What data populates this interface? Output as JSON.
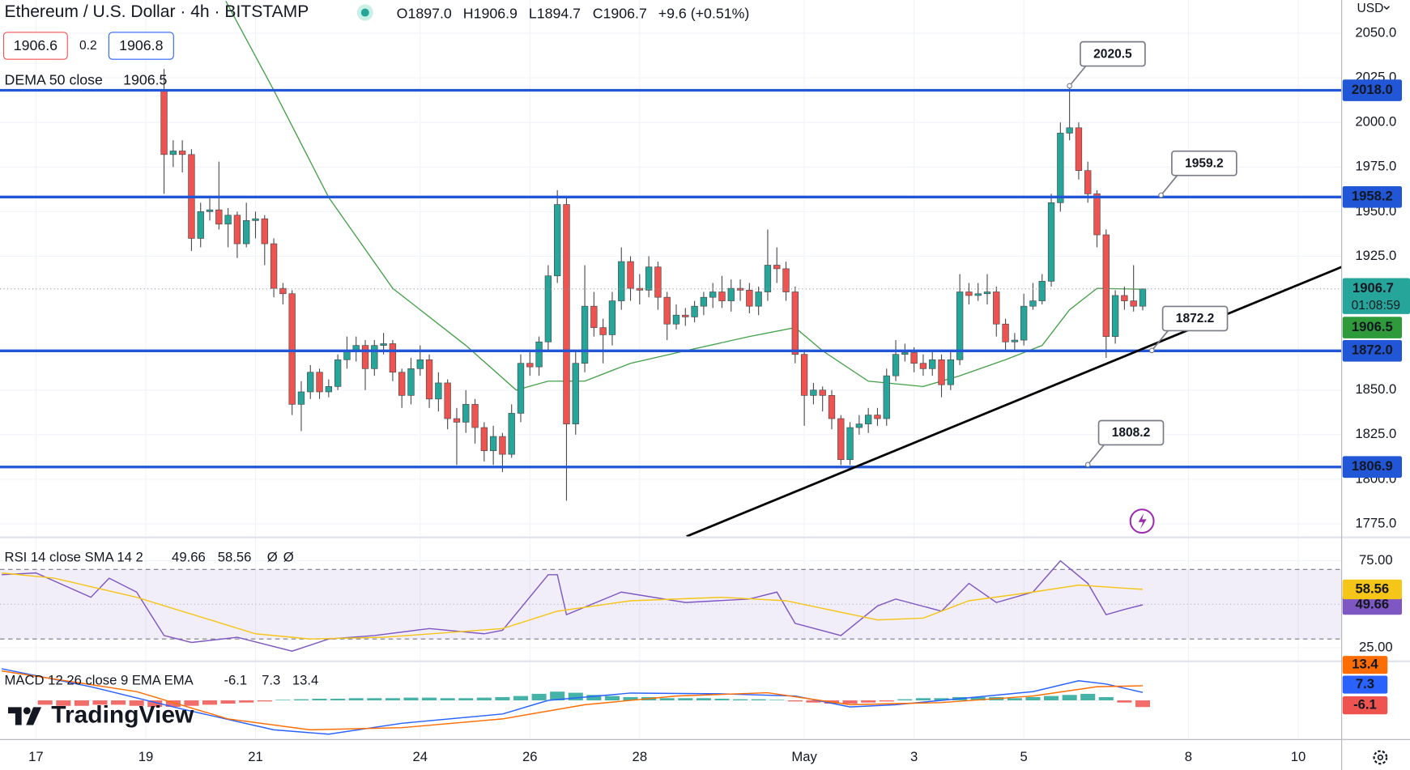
{
  "chart_data": [
    {
      "type": "candlestick",
      "title": "Ethereum / U.S. Dollar · 4h · BITSTAMP",
      "legend_values": [
        "O1897.0",
        "H1906.9",
        "L1894.7",
        "C1906.7",
        "+9.6 (+0.51%)"
      ],
      "quote": {
        "bid": 1906.6,
        "spread": 0.2,
        "ask": 1906.8
      },
      "currency": "USD",
      "countdown": "01:08:59",
      "up_color": "#26a69a",
      "down_color": "#ef5350",
      "x": [
        56,
        60,
        64,
        68,
        72,
        76,
        80,
        84,
        88,
        92,
        96,
        100,
        104,
        108,
        112,
        116,
        120,
        124,
        128,
        132,
        136,
        140,
        144,
        148,
        152,
        156,
        160,
        164,
        168,
        172,
        176,
        180,
        184,
        188,
        192,
        196,
        200,
        204,
        208,
        212,
        216,
        220,
        224,
        228,
        232,
        236,
        240,
        244,
        248,
        252,
        256,
        260,
        264,
        268,
        272,
        276,
        280,
        284,
        288,
        292,
        296,
        300,
        304,
        308,
        312,
        316,
        320,
        324,
        328,
        332,
        336,
        340,
        344,
        348,
        352,
        356,
        360,
        364,
        368,
        372,
        376,
        380,
        384,
        388,
        392,
        396,
        400,
        404,
        408,
        412,
        416,
        420,
        424,
        428,
        432,
        436,
        440,
        444,
        448,
        452,
        456,
        460,
        464,
        468,
        472,
        476,
        480,
        484
      ],
      "open": [
        2018,
        1982,
        1984,
        1982,
        1935,
        1950,
        1951,
        1943,
        1948,
        1932,
        1945,
        1946,
        1932,
        1907,
        1904,
        1842,
        1849,
        1860,
        1849,
        1852,
        1867,
        1872,
        1875,
        1862,
        1875,
        1876,
        1860,
        1847,
        1862,
        1867,
        1845,
        1854,
        1834,
        1832,
        1842,
        1829,
        1816,
        1824,
        1814,
        1837,
        1865,
        1863,
        1877,
        1914,
        1954,
        1831,
        1865,
        1897,
        1885,
        1881,
        1900,
        1922,
        1907,
        1906,
        1919,
        1902,
        1887,
        1892,
        1891,
        1897,
        1902,
        1905,
        1900,
        1907,
        1906,
        1897,
        1905,
        1920,
        1918,
        1905,
        1870,
        1847,
        1850,
        1847,
        1834,
        1811,
        1829,
        1831,
        1836,
        1834,
        1858,
        1870,
        1871,
        1865,
        1862,
        1867,
        1853,
        1867,
        1905,
        1903,
        1904,
        1905,
        1887,
        1877,
        1878,
        1897,
        1900,
        1911,
        1955,
        1994,
        1997,
        1973,
        1960,
        1937,
        1880,
        1903,
        1900,
        1897
      ],
      "high": [
        2030,
        1990,
        1990,
        1985,
        1955,
        1958,
        1978,
        1952,
        1950,
        1955,
        1950,
        1948,
        1935,
        1910,
        1906,
        1855,
        1864,
        1862,
        1856,
        1870,
        1880,
        1880,
        1878,
        1878,
        1882,
        1878,
        1862,
        1868,
        1875,
        1870,
        1860,
        1856,
        1840,
        1850,
        1845,
        1832,
        1830,
        1826,
        1842,
        1870,
        1872,
        1880,
        1920,
        1962,
        1958,
        1872,
        1920,
        1905,
        1890,
        1905,
        1930,
        1925,
        1915,
        1925,
        1922,
        1905,
        1898,
        1896,
        1900,
        1905,
        1910,
        1914,
        1912,
        1912,
        1910,
        1908,
        1940,
        1930,
        1922,
        1908,
        1872,
        1854,
        1852,
        1850,
        1836,
        1832,
        1836,
        1840,
        1840,
        1862,
        1878,
        1876,
        1874,
        1870,
        1872,
        1870,
        1872,
        1915,
        1910,
        1910,
        1915,
        1908,
        1890,
        1882,
        1904,
        1910,
        1915,
        1960,
        2000,
        2020.5,
        2000,
        1978,
        1962,
        1940,
        1906,
        1908,
        1920,
        1906.9
      ],
      "low": [
        1960,
        1975,
        1972,
        1928,
        1930,
        1945,
        1940,
        1930,
        1924,
        1930,
        1935,
        1920,
        1902,
        1898,
        1836,
        1827,
        1845,
        1845,
        1846,
        1850,
        1862,
        1866,
        1850,
        1858,
        1870,
        1855,
        1840,
        1842,
        1858,
        1840,
        1838,
        1828,
        1808,
        1826,
        1820,
        1810,
        1808,
        1804,
        1812,
        1832,
        1858,
        1858,
        1872,
        1910,
        1788,
        1825,
        1860,
        1880,
        1865,
        1875,
        1895,
        1900,
        1898,
        1902,
        1895,
        1878,
        1884,
        1886,
        1888,
        1892,
        1896,
        1896,
        1894,
        1900,
        1893,
        1892,
        1900,
        1910,
        1900,
        1865,
        1830,
        1842,
        1838,
        1828,
        1808,
        1808,
        1825,
        1826,
        1830,
        1830,
        1855,
        1866,
        1860,
        1858,
        1858,
        1846,
        1850,
        1864,
        1898,
        1900,
        1898,
        1880,
        1872,
        1872,
        1875,
        1895,
        1898,
        1908,
        1950,
        1990,
        1968,
        1955,
        1930,
        1868,
        1876,
        1895,
        1894,
        1894.7
      ],
      "close": [
        1982,
        1984,
        1982,
        1935,
        1950,
        1951,
        1943,
        1948,
        1932,
        1945,
        1946,
        1932,
        1907,
        1904,
        1842,
        1849,
        1860,
        1849,
        1852,
        1867,
        1872,
        1875,
        1862,
        1875,
        1876,
        1860,
        1847,
        1862,
        1867,
        1845,
        1854,
        1834,
        1832,
        1842,
        1829,
        1816,
        1824,
        1814,
        1837,
        1865,
        1863,
        1877,
        1914,
        1954,
        1831,
        1865,
        1897,
        1885,
        1881,
        1900,
        1922,
        1907,
        1906,
        1919,
        1902,
        1887,
        1892,
        1891,
        1897,
        1902,
        1905,
        1900,
        1907,
        1906,
        1897,
        1905,
        1920,
        1918,
        1905,
        1870,
        1847,
        1850,
        1847,
        1834,
        1811,
        1829,
        1831,
        1836,
        1834,
        1858,
        1870,
        1871,
        1865,
        1862,
        1867,
        1853,
        1867,
        1905,
        1903,
        1904,
        1905,
        1887,
        1877,
        1878,
        1897,
        1900,
        1911,
        1955,
        1994,
        1997,
        1973,
        1960,
        1937,
        1880,
        1903,
        1900,
        1897,
        1906.7
      ],
      "overlay": {
        "name": "DEMA 50 close",
        "color": "#43a047",
        "x": [
          83,
          104,
          128,
          156,
          188,
          210,
          224,
          240,
          260,
          284,
          312,
          332,
          344,
          364,
          388,
          404,
          424,
          440,
          452,
          464,
          484
        ],
        "values": [
          2068,
          2018,
          1958,
          1907,
          1875,
          1850,
          1855,
          1855,
          1865,
          1872,
          1880,
          1885,
          1872,
          1855,
          1852,
          1858,
          1867,
          1875,
          1895,
          1907,
          1906.5
        ]
      },
      "hlines": [
        {
          "value": 2018,
          "label": "2018.0"
        },
        {
          "value": 1958.2,
          "label": "1958.2"
        },
        {
          "value": 1872,
          "label": "1872.0"
        },
        {
          "value": 1806.9,
          "label": "1806.9"
        }
      ],
      "hline_color": "#2157d6",
      "callouts": [
        {
          "x": 452,
          "value": 2020.5
        },
        {
          "x": 492,
          "value": 1959.2
        },
        {
          "x": 488,
          "value": 1872.2
        },
        {
          "x": 460,
          "value": 1808.2
        }
      ],
      "trendline": {
        "x": [
          284.5,
          571
        ],
        "values": [
          1768,
          1919
        ]
      },
      "xlim": [
        -15.74,
        571
      ],
      "xticks": [
        {
          "value": 0,
          "label": "17"
        },
        {
          "value": 48,
          "label": "19"
        },
        {
          "value": 96,
          "label": "21"
        },
        {
          "value": 168,
          "label": "24"
        },
        {
          "value": 216,
          "label": "26"
        },
        {
          "value": 264,
          "label": "28"
        },
        {
          "value": 336,
          "label": "May"
        },
        {
          "value": 384,
          "label": "3"
        },
        {
          "value": 432,
          "label": "5"
        },
        {
          "value": 504,
          "label": "8"
        },
        {
          "value": 552,
          "label": "10"
        }
      ],
      "ylim": [
        1768,
        2068.6
      ],
      "yticks": [
        {
          "value": 2050,
          "label": "2050.0"
        },
        {
          "value": 2025,
          "label": "2025.0"
        },
        {
          "value": 2000,
          "label": "2000.0"
        },
        {
          "value": 1975,
          "label": "1975.0"
        },
        {
          "value": 1950,
          "label": "1950.0"
        },
        {
          "value": 1925,
          "label": "1925.0"
        },
        {
          "value": 1850,
          "label": "1850.0"
        },
        {
          "value": 1825,
          "label": "1825.0"
        },
        {
          "value": 1800,
          "label": "1800.0"
        },
        {
          "value": 1775,
          "label": "1775.0"
        }
      ],
      "grid": true
    },
    {
      "type": "line",
      "title": "RSI 14 close SMA 14 2",
      "series": [
        {
          "color": "#7e57c2",
          "x": [
            -15,
            0,
            24,
            32,
            44,
            56,
            68,
            88,
            112,
            128,
            148,
            172,
            196,
            204,
            224,
            228,
            232,
            256,
            284,
            312,
            324,
            332,
            352,
            368,
            376,
            396,
            408,
            420,
            436,
            448,
            460,
            468,
            476,
            484
          ],
          "values": [
            67,
            68,
            54,
            65,
            57,
            32,
            28,
            31,
            23,
            30,
            32,
            36,
            33,
            35,
            67,
            67,
            44,
            57,
            51,
            53,
            57,
            39,
            32,
            49,
            53,
            46,
            62,
            51,
            57,
            75,
            62,
            44,
            47,
            49.66
          ]
        },
        {
          "color": "#f5c518",
          "x": [
            -15,
            8,
            44,
            96,
            120,
            152,
            204,
            228,
            260,
            300,
            328,
            368,
            388,
            408,
            436,
            456,
            484
          ],
          "values": [
            68,
            65,
            54,
            33,
            30,
            31,
            36,
            46,
            52,
            54,
            52,
            41,
            42,
            52,
            57,
            61,
            58.56
          ]
        }
      ],
      "placeholders": [
        "Ø",
        "Ø"
      ],
      "bands": [
        30,
        70
      ],
      "middle": 50,
      "ylim": [
        17.7,
        88
      ],
      "yticks": [
        {
          "value": 75,
          "label": "75.00"
        },
        {
          "value": 25,
          "label": "25.00"
        }
      ]
    },
    {
      "type": "macd",
      "title": "MACD 12 26 close 9 EMA EMA",
      "histogram": {
        "up_color": "#26a69a",
        "down_color": "#ef5350",
        "x": [
          4,
          12,
          20,
          28,
          36,
          44,
          52,
          60,
          68,
          76,
          84,
          92,
          100,
          108,
          116,
          124,
          132,
          140,
          148,
          156,
          164,
          172,
          180,
          188,
          196,
          204,
          212,
          220,
          228,
          236,
          244,
          252,
          260,
          268,
          276,
          284,
          292,
          300,
          308,
          316,
          324,
          332,
          340,
          348,
          356,
          364,
          372,
          380,
          388,
          396,
          404,
          412,
          420,
          428,
          436,
          444,
          452,
          460,
          468,
          476,
          484
        ],
        "values": [
          -4,
          -5,
          -5,
          -4,
          -4,
          -5,
          -6,
          -6,
          -5,
          -4,
          -3,
          -2,
          -1,
          0.5,
          1,
          1.5,
          1.5,
          2,
          2,
          2,
          2.5,
          2.5,
          2,
          2,
          2.5,
          3,
          4,
          6,
          8,
          7,
          5,
          4,
          3,
          3,
          2,
          2,
          2,
          1.5,
          1,
          1,
          0.5,
          -1,
          -2,
          -3,
          -3,
          -2,
          -1,
          1,
          2,
          2,
          3,
          3,
          3,
          2,
          3,
          4,
          5,
          6,
          3,
          -2,
          -6.1
        ]
      },
      "series": [
        {
          "color": "#2962ff",
          "x": [
            -15,
            24,
            64,
            104,
            128,
            160,
            204,
            224,
            260,
            300,
            332,
            356,
            376,
            416,
            436,
            456,
            468,
            484
          ],
          "values": [
            29,
            12.5,
            -8,
            -27,
            -31,
            -21,
            -12.5,
            0,
            6.7,
            6,
            4,
            -6,
            -4,
            4,
            8,
            18,
            15,
            7.3
          ]
        },
        {
          "color": "#ff6d00",
          "x": [
            -15,
            44,
            84,
            120,
            160,
            204,
            240,
            280,
            320,
            356,
            396,
            436,
            464,
            484
          ],
          "values": [
            27,
            8,
            -17,
            -27,
            -25,
            -17,
            -4,
            4,
            7,
            -4,
            -2,
            4,
            12.5,
            13.4
          ]
        }
      ],
      "ylim": [
        -35,
        35
      ]
    }
  ],
  "watermark": "TradingView"
}
